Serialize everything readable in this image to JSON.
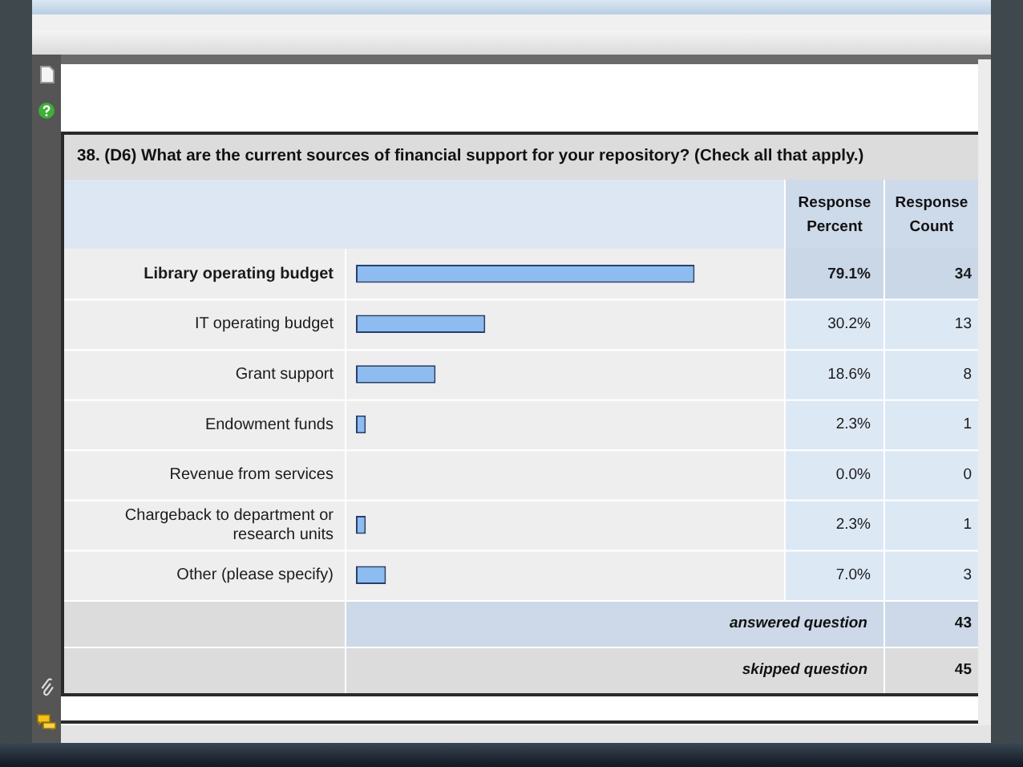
{
  "chart_data": {
    "type": "bar",
    "orientation": "horizontal",
    "title": "38. (D6) What are the current sources of financial support for your repository? (Check all that apply.)",
    "categories": [
      "Library operating budget",
      "IT operating budget",
      "Grant support",
      "Endowment funds",
      "Revenue from services",
      "Chargeback to department or research units",
      "Other (please specify)"
    ],
    "values": [
      79.1,
      30.2,
      18.6,
      2.3,
      0.0,
      2.3,
      7.0
    ],
    "value_labels": [
      "79.1%",
      "30.2%",
      "18.6%",
      "2.3%",
      "0.0%",
      "2.3%",
      "7.0%"
    ],
    "color": "#8dbcf0",
    "xlim": [
      0,
      100
    ],
    "tick_labels": "y",
    "annotations": [
      "Response Percent",
      "Response Count",
      "34",
      "13",
      "8",
      "1",
      "0",
      "1",
      "3",
      "answered question",
      "43",
      "skipped question",
      "45"
    ]
  }
}
